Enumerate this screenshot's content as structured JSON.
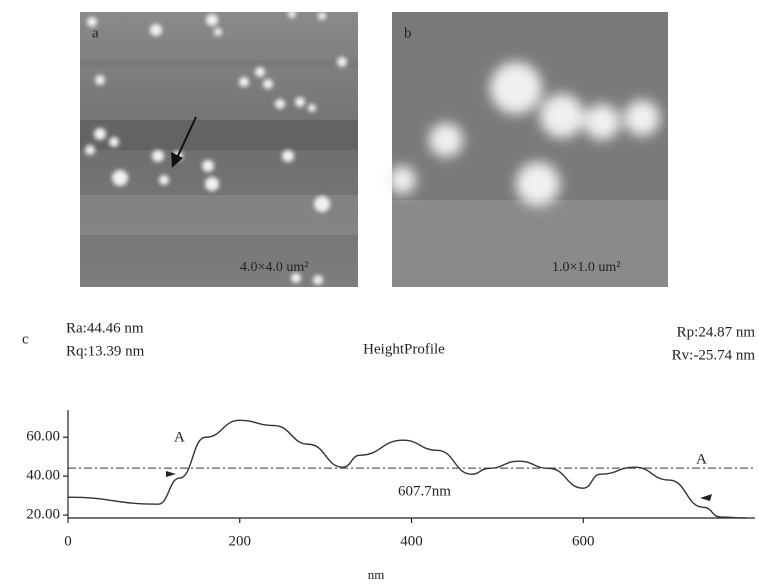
{
  "panels": [
    {
      "label": "a",
      "scale": "4.0×4.0 um²"
    },
    {
      "label": "b",
      "scale": "1.0×1.0 um²"
    }
  ],
  "chart_data": {
    "type": "line",
    "panel_label": "c",
    "title": "HeightProfile",
    "stats_left": [
      "Ra:44.46 nm",
      "Rq:13.39 nm"
    ],
    "stats_right": [
      "Rp:24.87 nm",
      "Rv:-25.74 nm"
    ],
    "x_label": "nm",
    "x": [
      0,
      105,
      130,
      160,
      200,
      240,
      280,
      320,
      340,
      390,
      430,
      470,
      490,
      525,
      560,
      600,
      620,
      660,
      700,
      740,
      760,
      790
    ],
    "values": [
      29.2,
      25.6,
      39,
      60,
      68.7,
      66,
      56.4,
      44.6,
      50.8,
      58.5,
      53.3,
      41,
      44,
      47.7,
      44,
      33.8,
      41,
      44.6,
      38,
      24,
      19,
      18.5
    ],
    "color": "#333333",
    "reference_line": 44.1,
    "annotations": [
      "A",
      "A",
      "607.7nm"
    ],
    "xlim": [
      0,
      800
    ],
    "ylim": [
      18.5,
      74
    ],
    "xticks": [
      0,
      200,
      400,
      600
    ],
    "yticks": [
      {
        "value": 20,
        "label": "20.00"
      },
      {
        "value": 40,
        "label": "40.00"
      },
      {
        "value": 60,
        "label": "60.00"
      }
    ]
  }
}
